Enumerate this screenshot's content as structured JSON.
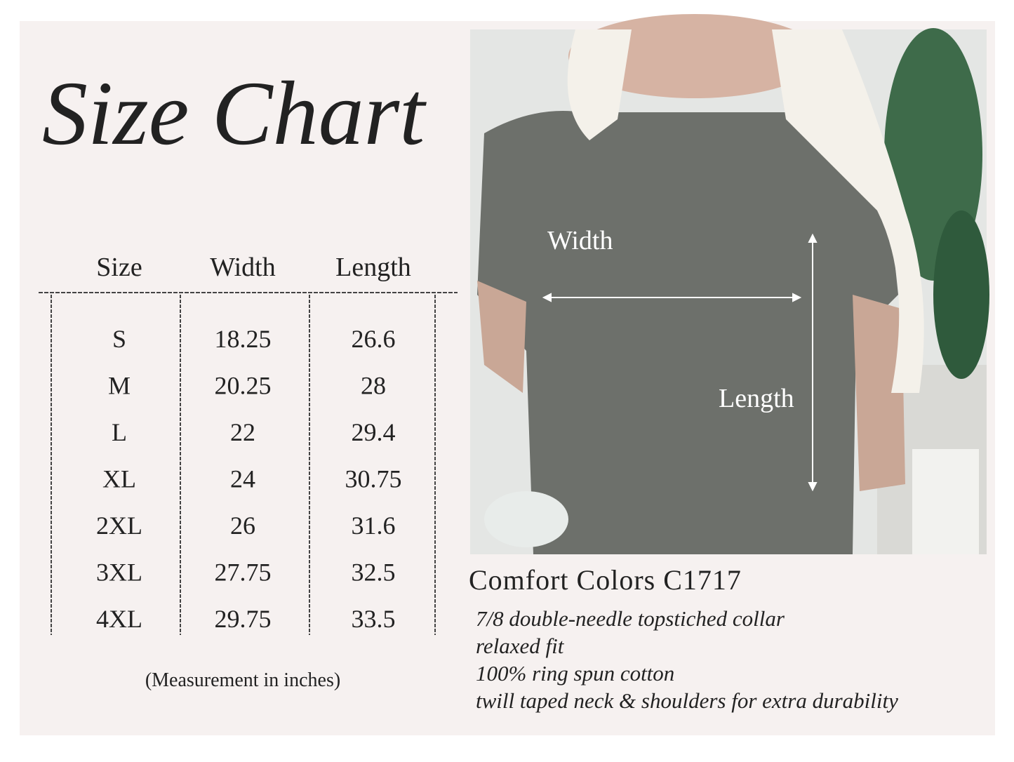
{
  "header": {
    "title": "Size Chart"
  },
  "table": {
    "columns": [
      "Size",
      "Width",
      "Length"
    ],
    "rows": [
      [
        "S",
        "18.25",
        "26.6"
      ],
      [
        "M",
        "20.25",
        "28"
      ],
      [
        "L",
        "22",
        "29.4"
      ],
      [
        "XL",
        "24",
        "30.75"
      ],
      [
        "2XL",
        "26",
        "31.6"
      ],
      [
        "3XL",
        "27.75",
        "32.5"
      ],
      [
        "4XL",
        "29.75",
        "33.5"
      ]
    ],
    "note": "(Measurement in inches)"
  },
  "photo": {
    "width_label": "Width",
    "length_label": "Length"
  },
  "product": {
    "title": "Comfort Colors C1717",
    "features": [
      "7/8 double-needle topstiched collar",
      "relaxed fit",
      "100% ring spun cotton",
      "twill taped neck & shoulders for extra durability"
    ]
  }
}
